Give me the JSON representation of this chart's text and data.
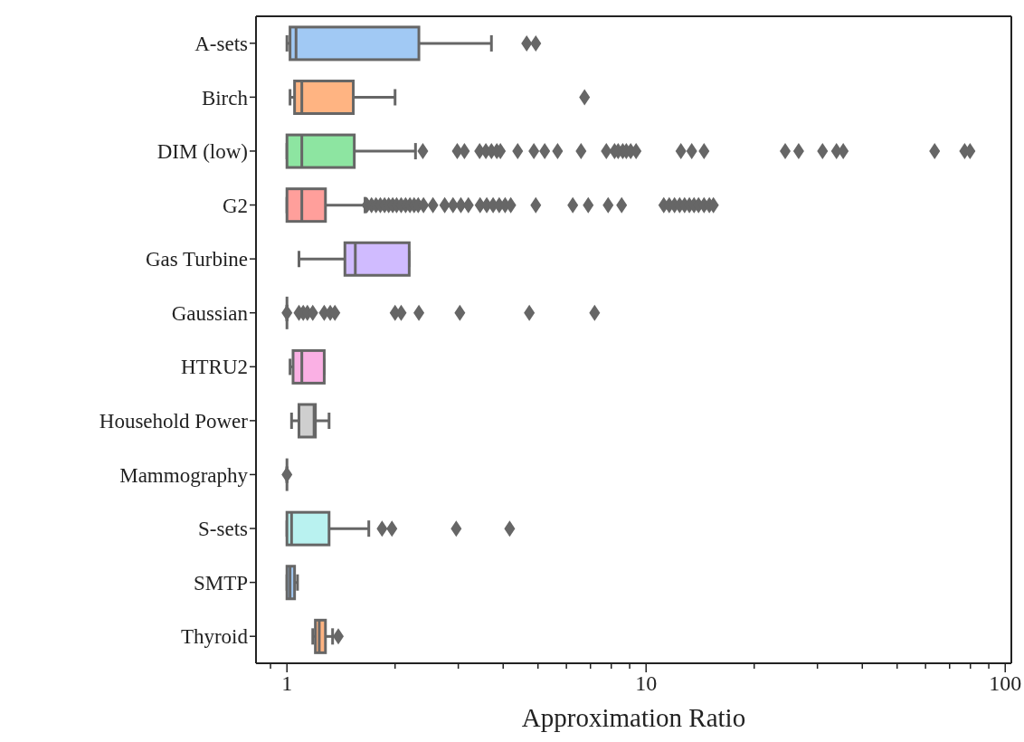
{
  "chart_data": {
    "type": "box",
    "orientation": "horizontal",
    "xlabel": "Approximation Ratio",
    "log": "x",
    "marker": "diamond",
    "categories": [
      "A-sets",
      "Birch",
      "DIM (low)",
      "G2",
      "Gas Turbine",
      "Gaussian",
      "HTRU2",
      "Household Power",
      "Mammography",
      "S-sets",
      "SMTP",
      "Thyroid"
    ],
    "colors": [
      "#a1c9f4",
      "#ffb482",
      "#8de5a1",
      "#ff9f9b",
      "#d0bbff",
      null,
      "#fab0e4",
      "#cfcfcf",
      null,
      "#b9f2f0",
      "#a1c9f4",
      "#ffb482"
    ],
    "xlim": [
      0.82,
      104
    ],
    "xticks": [
      {
        "value": 0.9,
        "label": null
      },
      1,
      {
        "value": 2,
        "label": null
      },
      {
        "value": 3,
        "label": null
      },
      {
        "value": 4,
        "label": null
      },
      {
        "value": 5,
        "label": null
      },
      {
        "value": 6,
        "label": null
      },
      {
        "value": 7,
        "label": null
      },
      {
        "value": 8,
        "label": null
      },
      {
        "value": 9,
        "label": null
      },
      10,
      {
        "value": 20,
        "label": null
      },
      {
        "value": 30,
        "label": null
      },
      {
        "value": 40,
        "label": null
      },
      {
        "value": 50,
        "label": null
      },
      {
        "value": 60,
        "label": null
      },
      {
        "value": 70,
        "label": null
      },
      {
        "value": 80,
        "label": null
      },
      {
        "value": 90,
        "label": null
      },
      100
    ],
    "boxes": [
      {
        "low": 1.0,
        "q1": 1.02,
        "median": 1.06,
        "q3": 2.33,
        "high": 3.71,
        "outliers": [
          4.65,
          4.93
        ]
      },
      {
        "low": 1.02,
        "q1": 1.05,
        "median": 1.1,
        "q3": 1.53,
        "high": 2.0,
        "outliers": [
          6.74
        ]
      },
      {
        "low": 1.0,
        "q1": 1.0,
        "median": 1.1,
        "q3": 1.54,
        "high": 2.28,
        "outliers": [
          2.39,
          2.98,
          3.12,
          3.44,
          3.58,
          3.71,
          3.84,
          3.93,
          4.39,
          4.87,
          5.22,
          5.67,
          6.59,
          7.75,
          8.17,
          8.36,
          8.61,
          8.81,
          9.06,
          9.38,
          12.5,
          13.4,
          14.5,
          24.4,
          26.6,
          31.0,
          33.9,
          35.4,
          63.6,
          77.1,
          79.8
        ]
      },
      {
        "low": 1.0,
        "q1": 1.0,
        "median": 1.1,
        "q3": 1.28,
        "high": 1.65,
        "outliers": [
          1.67,
          1.72,
          1.77,
          1.82,
          1.87,
          1.92,
          1.97,
          2.02,
          2.08,
          2.14,
          2.2,
          2.26,
          2.32,
          2.4,
          2.55,
          2.75,
          2.9,
          3.05,
          3.2,
          3.45,
          3.6,
          3.75,
          3.9,
          4.05,
          4.2,
          4.93,
          6.25,
          6.9,
          7.84,
          8.55,
          11.2,
          11.6,
          12.0,
          12.4,
          12.8,
          13.2,
          13.6,
          14.0,
          14.5,
          15.0,
          15.4
        ]
      },
      {
        "low": 1.08,
        "q1": 1.45,
        "median": 1.55,
        "q3": 2.19,
        "high": 2.19
      },
      {
        "low": 1.0,
        "q1": 1.0,
        "median": 1.0,
        "q3": 1.0,
        "high": 1.0,
        "outliers": [
          1.0,
          1.08,
          1.11,
          1.14,
          1.18,
          1.27,
          1.32,
          1.36,
          2.0,
          2.08,
          2.33,
          3.03,
          4.73,
          7.19
        ]
      },
      {
        "low": 1.02,
        "q1": 1.04,
        "median": 1.1,
        "q3": 1.27,
        "high": 1.27
      },
      {
        "low": 1.03,
        "q1": 1.08,
        "median": 1.19,
        "q3": 1.2,
        "high": 1.31
      },
      {
        "low": 1.0,
        "q1": 1.0,
        "median": 1.0,
        "q3": 1.0,
        "high": 1.0,
        "outliers": [
          1.0
        ]
      },
      {
        "low": 1.0,
        "q1": 1.0,
        "median": 1.03,
        "q3": 1.31,
        "high": 1.69,
        "outliers": [
          1.84,
          1.96,
          2.96,
          4.17
        ]
      },
      {
        "low": 1.0,
        "q1": 1.0,
        "median": 1.02,
        "q3": 1.05,
        "high": 1.07
      },
      {
        "low": 1.18,
        "q1": 1.2,
        "median": 1.23,
        "q3": 1.28,
        "high": 1.34,
        "outliers": [
          1.39
        ]
      }
    ]
  }
}
